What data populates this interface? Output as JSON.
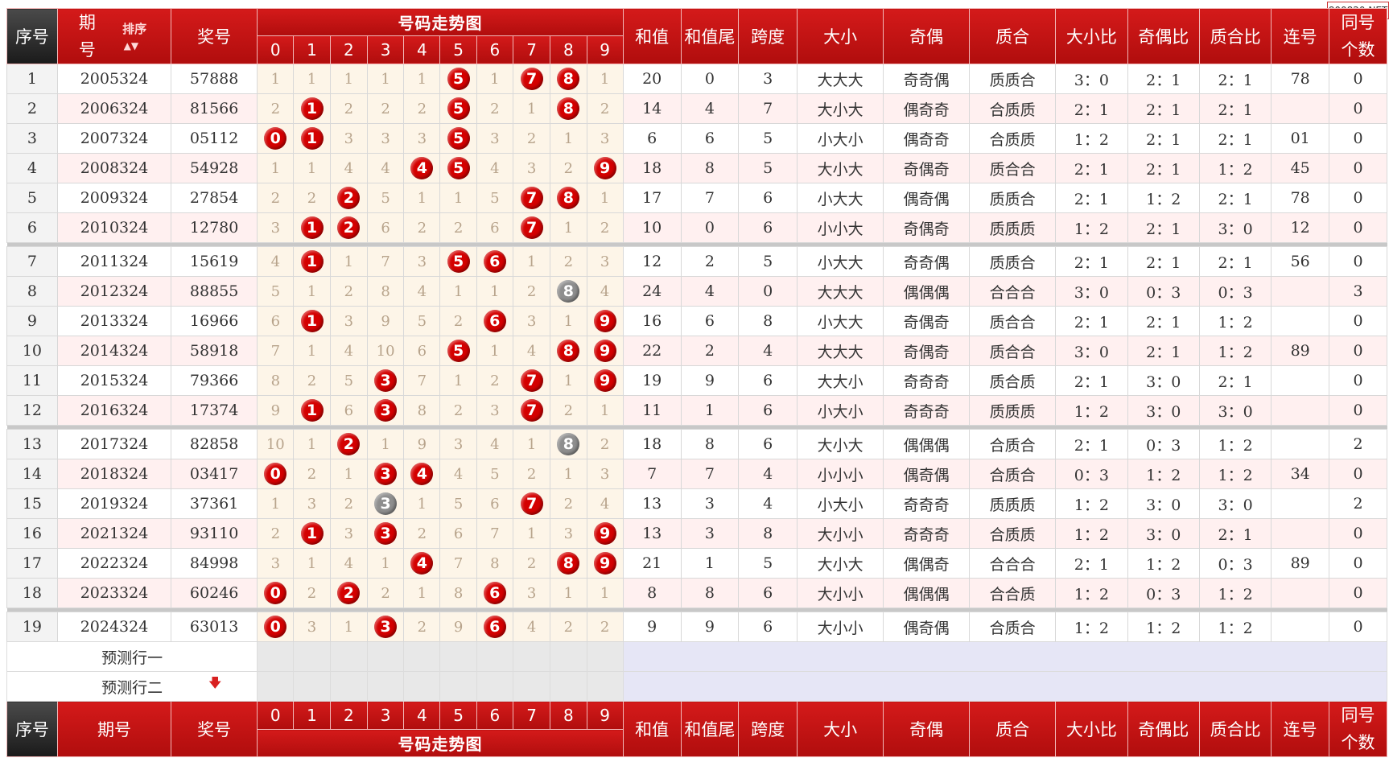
{
  "watermark": "800820.NET",
  "headers": {
    "seq": "序号",
    "period_top": "期",
    "period_bottom": "号",
    "period": "期号",
    "sort": "排序",
    "award": "奖号",
    "trend": "号码走势图",
    "digits": [
      "0",
      "1",
      "2",
      "3",
      "4",
      "5",
      "6",
      "7",
      "8",
      "9"
    ],
    "sum": "和值",
    "sum_tail": "和值尾",
    "span": "跨度",
    "size": "大小",
    "parity": "奇偶",
    "prime": "质合",
    "size_ratio": "大小比",
    "parity_ratio": "奇偶比",
    "prime_ratio": "质合比",
    "consec": "连号",
    "same_top": "同号",
    "same_bottom": "个数"
  },
  "rows": [
    {
      "seq": "1",
      "period": "2005324",
      "award": "57888",
      "cells": [
        "1",
        "1",
        "1",
        "1",
        "1",
        "5",
        "1",
        "7",
        "8",
        "1"
      ],
      "hits": [
        5,
        7,
        8
      ],
      "grey": [],
      "sum": "20",
      "tail": "0",
      "span": "3",
      "size": "大大大",
      "parity": "奇奇偶",
      "prime": "质质合",
      "sr": "3：0",
      "pr": "2：1",
      "qr": "2：1",
      "consec": "78",
      "same": "0"
    },
    {
      "seq": "2",
      "period": "2006324",
      "award": "81566",
      "cells": [
        "2",
        "1",
        "2",
        "2",
        "2",
        "5",
        "2",
        "1",
        "8",
        "2"
      ],
      "hits": [
        1,
        5,
        8
      ],
      "grey": [],
      "sum": "14",
      "tail": "4",
      "span": "7",
      "size": "大小大",
      "parity": "偶奇奇",
      "prime": "合质质",
      "sr": "2：1",
      "pr": "2：1",
      "qr": "2：1",
      "consec": "",
      "same": "0"
    },
    {
      "seq": "3",
      "period": "2007324",
      "award": "05112",
      "cells": [
        "0",
        "1",
        "3",
        "3",
        "3",
        "5",
        "3",
        "2",
        "1",
        "3"
      ],
      "hits": [
        0,
        1,
        5
      ],
      "grey": [],
      "sum": "6",
      "tail": "6",
      "span": "5",
      "size": "小大小",
      "parity": "偶奇奇",
      "prime": "合质质",
      "sr": "1：2",
      "pr": "2：1",
      "qr": "2：1",
      "consec": "01",
      "same": "0"
    },
    {
      "seq": "4",
      "period": "2008324",
      "award": "54928",
      "cells": [
        "1",
        "1",
        "4",
        "4",
        "4",
        "5",
        "4",
        "3",
        "2",
        "9"
      ],
      "hits": [
        4,
        5,
        9
      ],
      "grey": [],
      "sum": "18",
      "tail": "8",
      "span": "5",
      "size": "大小大",
      "parity": "奇偶奇",
      "prime": "质合合",
      "sr": "2：1",
      "pr": "2：1",
      "qr": "1：2",
      "consec": "45",
      "same": "0"
    },
    {
      "seq": "5",
      "period": "2009324",
      "award": "27854",
      "cells": [
        "2",
        "2",
        "2",
        "5",
        "1",
        "1",
        "5",
        "7",
        "8",
        "1"
      ],
      "hits": [
        2,
        7,
        8
      ],
      "grey": [],
      "sum": "17",
      "tail": "7",
      "span": "6",
      "size": "小大大",
      "parity": "偶奇偶",
      "prime": "质质合",
      "sr": "2：1",
      "pr": "1：2",
      "qr": "2：1",
      "consec": "78",
      "same": "0"
    },
    {
      "seq": "6",
      "period": "2010324",
      "award": "12780",
      "cells": [
        "3",
        "1",
        "2",
        "6",
        "2",
        "2",
        "6",
        "7",
        "1",
        "2"
      ],
      "hits": [
        1,
        2,
        7
      ],
      "grey": [],
      "sum": "10",
      "tail": "0",
      "span": "6",
      "size": "小小大",
      "parity": "奇偶奇",
      "prime": "质质质",
      "sr": "1：2",
      "pr": "2：1",
      "qr": "3：0",
      "consec": "12",
      "same": "0"
    },
    {
      "seq": "7",
      "period": "2011324",
      "award": "15619",
      "cells": [
        "4",
        "1",
        "1",
        "7",
        "3",
        "5",
        "6",
        "1",
        "2",
        "3"
      ],
      "hits": [
        1,
        5,
        6
      ],
      "grey": [],
      "sum": "12",
      "tail": "2",
      "span": "5",
      "size": "小大大",
      "parity": "奇奇偶",
      "prime": "质质合",
      "sr": "2：1",
      "pr": "2：1",
      "qr": "2：1",
      "consec": "56",
      "same": "0"
    },
    {
      "seq": "8",
      "period": "2012324",
      "award": "88855",
      "cells": [
        "5",
        "1",
        "2",
        "8",
        "4",
        "1",
        "1",
        "2",
        "8",
        "4"
      ],
      "hits": [],
      "grey": [
        8
      ],
      "sum": "24",
      "tail": "4",
      "span": "0",
      "size": "大大大",
      "parity": "偶偶偶",
      "prime": "合合合",
      "sr": "3：0",
      "pr": "0：3",
      "qr": "0：3",
      "consec": "",
      "same": "3"
    },
    {
      "seq": "9",
      "period": "2013324",
      "award": "16966",
      "cells": [
        "6",
        "1",
        "3",
        "9",
        "5",
        "2",
        "6",
        "3",
        "1",
        "9"
      ],
      "hits": [
        1,
        6,
        9
      ],
      "grey": [],
      "sum": "16",
      "tail": "6",
      "span": "8",
      "size": "小大大",
      "parity": "奇偶奇",
      "prime": "质合合",
      "sr": "2：1",
      "pr": "2：1",
      "qr": "1：2",
      "consec": "",
      "same": "0"
    },
    {
      "seq": "10",
      "period": "2014324",
      "award": "58918",
      "cells": [
        "7",
        "1",
        "4",
        "10",
        "6",
        "5",
        "1",
        "4",
        "8",
        "9"
      ],
      "hits": [
        5,
        8,
        9
      ],
      "grey": [],
      "sum": "22",
      "tail": "2",
      "span": "4",
      "size": "大大大",
      "parity": "奇偶奇",
      "prime": "质合合",
      "sr": "3：0",
      "pr": "2：1",
      "qr": "1：2",
      "consec": "89",
      "same": "0"
    },
    {
      "seq": "11",
      "period": "2015324",
      "award": "79366",
      "cells": [
        "8",
        "2",
        "5",
        "3",
        "7",
        "1",
        "2",
        "7",
        "1",
        "9"
      ],
      "hits": [
        3,
        7,
        9
      ],
      "grey": [],
      "sum": "19",
      "tail": "9",
      "span": "6",
      "size": "大大小",
      "parity": "奇奇奇",
      "prime": "质合质",
      "sr": "2：1",
      "pr": "3：0",
      "qr": "2：1",
      "consec": "",
      "same": "0"
    },
    {
      "seq": "12",
      "period": "2016324",
      "award": "17374",
      "cells": [
        "9",
        "1",
        "6",
        "3",
        "8",
        "2",
        "3",
        "7",
        "2",
        "1"
      ],
      "hits": [
        1,
        3,
        7
      ],
      "grey": [],
      "sum": "11",
      "tail": "1",
      "span": "6",
      "size": "小大小",
      "parity": "奇奇奇",
      "prime": "质质质",
      "sr": "1：2",
      "pr": "3：0",
      "qr": "3：0",
      "consec": "",
      "same": "0"
    },
    {
      "seq": "13",
      "period": "2017324",
      "award": "82858",
      "cells": [
        "10",
        "1",
        "2",
        "1",
        "9",
        "3",
        "4",
        "1",
        "8",
        "2"
      ],
      "hits": [
        2
      ],
      "grey": [
        8
      ],
      "sum": "18",
      "tail": "8",
      "span": "6",
      "size": "大小大",
      "parity": "偶偶偶",
      "prime": "合质合",
      "sr": "2：1",
      "pr": "0：3",
      "qr": "1：2",
      "consec": "",
      "same": "2"
    },
    {
      "seq": "14",
      "period": "2018324",
      "award": "03417",
      "cells": [
        "0",
        "2",
        "1",
        "3",
        "4",
        "4",
        "5",
        "2",
        "1",
        "3"
      ],
      "hits": [
        0,
        3,
        4
      ],
      "grey": [],
      "sum": "7",
      "tail": "7",
      "span": "4",
      "size": "小小小",
      "parity": "偶奇偶",
      "prime": "合质合",
      "sr": "0：3",
      "pr": "1：2",
      "qr": "1：2",
      "consec": "34",
      "same": "0"
    },
    {
      "seq": "15",
      "period": "2019324",
      "award": "37361",
      "cells": [
        "1",
        "3",
        "2",
        "3",
        "1",
        "5",
        "6",
        "7",
        "2",
        "4"
      ],
      "hits": [
        7
      ],
      "grey": [
        3
      ],
      "sum": "13",
      "tail": "3",
      "span": "4",
      "size": "小大小",
      "parity": "奇奇奇",
      "prime": "质质质",
      "sr": "1：2",
      "pr": "3：0",
      "qr": "3：0",
      "consec": "",
      "same": "2"
    },
    {
      "seq": "16",
      "period": "2021324",
      "award": "93110",
      "cells": [
        "2",
        "1",
        "3",
        "3",
        "2",
        "6",
        "7",
        "1",
        "3",
        "9"
      ],
      "hits": [
        1,
        3,
        9
      ],
      "grey": [],
      "sum": "13",
      "tail": "3",
      "span": "8",
      "size": "大小小",
      "parity": "奇奇奇",
      "prime": "合质质",
      "sr": "1：2",
      "pr": "3：0",
      "qr": "2：1",
      "consec": "",
      "same": "0"
    },
    {
      "seq": "17",
      "period": "2022324",
      "award": "84998",
      "cells": [
        "3",
        "1",
        "4",
        "1",
        "4",
        "7",
        "8",
        "2",
        "8",
        "9"
      ],
      "hits": [
        4,
        8,
        9
      ],
      "grey": [],
      "sum": "21",
      "tail": "1",
      "span": "5",
      "size": "大小大",
      "parity": "偶偶奇",
      "prime": "合合合",
      "sr": "2：1",
      "pr": "1：2",
      "qr": "0：3",
      "consec": "89",
      "same": "0"
    },
    {
      "seq": "18",
      "period": "2023324",
      "award": "60246",
      "cells": [
        "0",
        "2",
        "2",
        "2",
        "1",
        "8",
        "6",
        "3",
        "1",
        "1"
      ],
      "hits": [
        0,
        2,
        6
      ],
      "grey": [],
      "sum": "8",
      "tail": "8",
      "span": "6",
      "size": "大小小",
      "parity": "偶偶偶",
      "prime": "合合质",
      "sr": "1：2",
      "pr": "0：3",
      "qr": "1：2",
      "consec": "",
      "same": "0"
    },
    {
      "seq": "19",
      "period": "2024324",
      "award": "63013",
      "cells": [
        "0",
        "3",
        "1",
        "3",
        "2",
        "9",
        "6",
        "4",
        "2",
        "2"
      ],
      "hits": [
        0,
        3,
        6
      ],
      "grey": [],
      "sum": "9",
      "tail": "9",
      "span": "6",
      "size": "大小小",
      "parity": "偶奇偶",
      "prime": "合质合",
      "sr": "1：2",
      "pr": "1：2",
      "qr": "1：2",
      "consec": "",
      "same": "0"
    }
  ],
  "predict": [
    "预测行一",
    "预测行二"
  ],
  "colors": {
    "header_red": "#c8102e",
    "hit_ball": "#d40000",
    "repeat_ball": "#8e8e8e",
    "digit_bg": "#fdf5e8",
    "even_row": "#fff0f0"
  }
}
